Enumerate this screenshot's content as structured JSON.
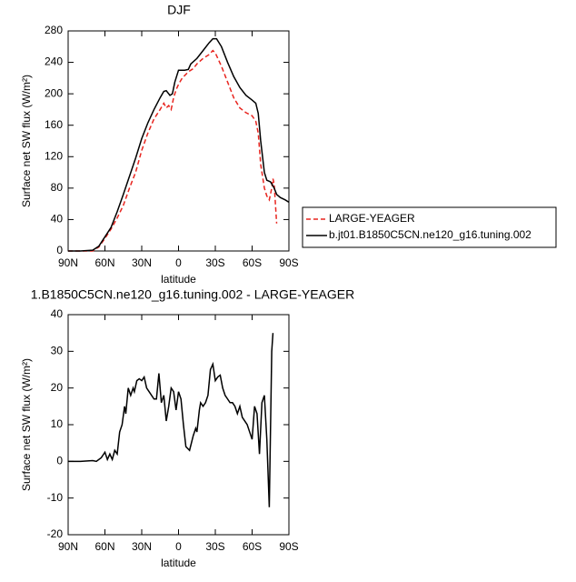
{
  "chart_data": [
    {
      "type": "line",
      "title": "DJF",
      "xlabel": "latitude",
      "ylabel": "Surface net SW flux (W/m²)",
      "xlim": [
        90,
        -90
      ],
      "ylim": [
        0,
        280
      ],
      "xticks": [
        {
          "value": 90,
          "label": "90N"
        },
        {
          "value": 60,
          "label": "60N"
        },
        {
          "value": 30,
          "label": "30N"
        },
        0,
        {
          "value": -30,
          "label": "30S"
        },
        {
          "value": -60,
          "label": "60S"
        },
        {
          "value": -90,
          "label": "90S"
        }
      ],
      "yticks": [
        0,
        40,
        80,
        120,
        160,
        200,
        240,
        280
      ],
      "legend": "right",
      "series": [
        {
          "name": "LARGE-YEAGER",
          "color": "#e8251f",
          "linestyle": "dashed",
          "x": [
            90,
            70,
            65,
            60,
            55,
            50,
            45,
            40,
            35,
            30,
            25,
            20,
            15,
            12,
            10,
            8,
            6,
            4,
            2,
            0,
            -3,
            -8,
            -12,
            -15,
            -20,
            -25,
            -28,
            -30,
            -35,
            -40,
            -45,
            -50,
            -55,
            -60,
            -63,
            -65,
            -67,
            -70,
            -72,
            -74,
            -76,
            -77,
            -78,
            -79,
            -80
          ],
          "values": [
            0,
            0,
            5,
            16,
            28,
            42,
            58,
            80,
            100,
            128,
            150,
            168,
            180,
            188,
            182,
            185,
            180,
            195,
            205,
            212,
            220,
            228,
            232,
            238,
            245,
            250,
            255,
            252,
            235,
            215,
            195,
            182,
            176,
            172,
            165,
            150,
            110,
            80,
            70,
            65,
            80,
            92,
            85,
            60,
            35
          ]
        },
        {
          "name": "b.jt01.B1850C5CN.ne120_g16.tuning.002",
          "color": "#000000",
          "linestyle": "solid",
          "x": [
            90,
            80,
            70,
            65,
            60,
            55,
            50,
            45,
            40,
            35,
            30,
            25,
            20,
            15,
            12,
            10,
            7,
            5,
            3,
            0,
            -5,
            -8,
            -10,
            -15,
            -20,
            -25,
            -28,
            -31,
            -35,
            -40,
            -45,
            -50,
            -55,
            -60,
            -63,
            -65,
            -67,
            -70,
            -72,
            -75,
            -78,
            -80,
            -83,
            -87,
            -90
          ],
          "values": [
            0,
            0,
            1,
            6,
            18,
            30,
            50,
            72,
            95,
            118,
            143,
            163,
            180,
            195,
            203,
            204,
            198,
            200,
            215,
            230,
            230,
            231,
            238,
            245,
            255,
            265,
            270,
            270,
            260,
            240,
            222,
            208,
            198,
            192,
            188,
            175,
            140,
            100,
            90,
            88,
            80,
            72,
            68,
            65,
            62
          ]
        }
      ]
    },
    {
      "type": "line",
      "title": "1.B1850C5CN.ne120_g16.tuning.002 - LARGE-YEAGER",
      "xlabel": "latitude",
      "ylabel": "Surface net SW flux (W/m²)",
      "xlim": [
        90,
        -90
      ],
      "ylim": [
        -20,
        40
      ],
      "xticks": [
        {
          "value": 90,
          "label": "90N"
        },
        {
          "value": 60,
          "label": "60N"
        },
        {
          "value": 30,
          "label": "30N"
        },
        0,
        {
          "value": -30,
          "label": "30S"
        },
        {
          "value": -60,
          "label": "60S"
        },
        {
          "value": -90,
          "label": "90S"
        }
      ],
      "yticks": [
        -20,
        -10,
        0,
        10,
        20,
        30,
        40
      ],
      "x": [
        90,
        80,
        70,
        67,
        63,
        60,
        58,
        56,
        54,
        52,
        50,
        48,
        46,
        44,
        43,
        41,
        39,
        37,
        36,
        34,
        32,
        30,
        28,
        26,
        24,
        20,
        18,
        16,
        14,
        12,
        10,
        8,
        6,
        4,
        2,
        0,
        -2,
        -4,
        -6,
        -9,
        -12,
        -14,
        -15,
        -17,
        -18,
        -20,
        -22,
        -24,
        -26,
        -28,
        -30,
        -32,
        -34,
        -36,
        -38,
        -40,
        -42,
        -44,
        -46,
        -48,
        -50,
        -52,
        -54,
        -56,
        -58,
        -60,
        -62,
        -64,
        -66,
        -68,
        -70,
        -72,
        -74,
        -76,
        -77
      ],
      "series": [
        {
          "color": "#000000",
          "linestyle": "solid",
          "values": [
            0,
            0,
            0.2,
            0,
            1,
            2.5,
            0.5,
            2,
            0.5,
            3,
            2,
            8,
            10,
            15,
            13,
            20,
            18,
            20,
            19,
            22,
            22.5,
            22,
            23,
            20,
            19,
            17,
            17,
            24,
            16,
            18,
            11,
            15,
            20,
            19,
            14,
            19,
            17,
            10,
            4,
            3,
            7,
            9,
            8,
            14,
            16,
            15,
            16,
            18,
            25,
            26.5,
            22,
            23,
            23.5,
            20,
            18,
            17,
            16,
            16,
            15,
            13,
            15,
            12,
            11,
            10,
            8,
            6,
            15,
            13,
            2,
            16,
            18,
            6,
            -12.5,
            30,
            35
          ]
        }
      ]
    }
  ]
}
